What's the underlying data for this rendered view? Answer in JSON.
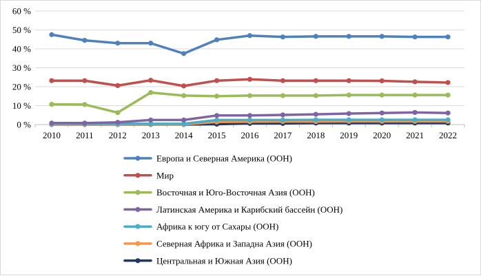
{
  "chart_data": {
    "type": "line",
    "title": "",
    "xlabel": "",
    "ylabel": "",
    "categories": [
      "2010",
      "2011",
      "2012",
      "2013",
      "2014",
      "2015",
      "2016",
      "2017",
      "2018",
      "2019",
      "2020",
      "2021",
      "2022"
    ],
    "ylim": [
      0,
      60
    ],
    "yticks": [
      0,
      10,
      20,
      30,
      40,
      50,
      60
    ],
    "ytick_labels": [
      "0 %",
      "10 %",
      "20 %",
      "30 %",
      "40 %",
      "50 %",
      "60 %"
    ],
    "grid": "horizontal",
    "legend_position": "bottom",
    "series": [
      {
        "name": "Европа и Северная Америка (ООН)",
        "color": "#4f81bd",
        "values": [
          47.5,
          44.5,
          43.0,
          43.0,
          37.5,
          44.8,
          47.0,
          46.3,
          46.6,
          46.6,
          46.6,
          46.3,
          46.3
        ]
      },
      {
        "name": "Мир",
        "color": "#c0504d",
        "values": [
          23.2,
          23.2,
          20.6,
          23.4,
          20.4,
          23.2,
          23.9,
          23.2,
          23.2,
          23.2,
          23.1,
          22.6,
          22.2
        ]
      },
      {
        "name": "Восточная и Юго-Восточная Азия (ООН)",
        "color": "#9bbb59",
        "values": [
          10.7,
          10.6,
          6.3,
          16.9,
          15.3,
          15.0,
          15.3,
          15.3,
          15.3,
          15.6,
          15.6,
          15.6,
          15.6
        ]
      },
      {
        "name": "Латинская Америка и Карибский бассейн (ООН)",
        "color": "#8064a2",
        "values": [
          0.8,
          0.8,
          1.2,
          2.4,
          2.4,
          4.8,
          4.8,
          5.1,
          5.4,
          5.8,
          6.1,
          6.4,
          6.1
        ]
      },
      {
        "name": "Африка к югу от Сахары (ООН)",
        "color": "#4bacc6",
        "values": [
          0.4,
          0.4,
          0.4,
          0.4,
          0.4,
          2.4,
          2.4,
          2.4,
          2.5,
          2.5,
          2.5,
          2.5,
          2.5
        ]
      },
      {
        "name": "Северная Африка и Западна Азия (ООН)",
        "color": "#f79646",
        "values": [
          0.1,
          0.1,
          0.1,
          0.1,
          0.1,
          1.4,
          1.5,
          1.6,
          1.6,
          1.7,
          1.7,
          1.7,
          1.7
        ]
      },
      {
        "name": "Центральная и Южная Азия (ООН)",
        "color": "#1f3864",
        "values": [
          0.0,
          0.0,
          0.0,
          0.0,
          0.0,
          0.2,
          0.6,
          0.6,
          0.8,
          0.8,
          0.8,
          0.8,
          0.8
        ]
      }
    ]
  }
}
